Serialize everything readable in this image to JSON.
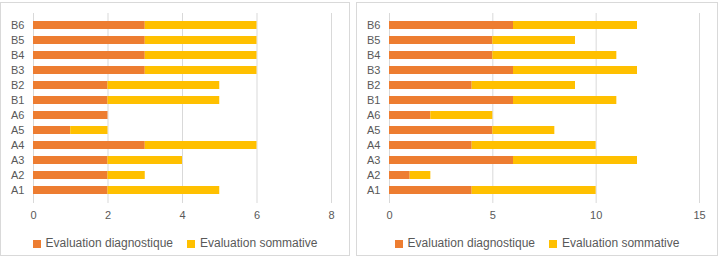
{
  "chart_data": [
    {
      "type": "bar",
      "orientation": "horizontal",
      "stacked": true,
      "grid": true,
      "legend": "bottom",
      "categories": [
        "A1",
        "A2",
        "A3",
        "A4",
        "A5",
        "A6",
        "B1",
        "B2",
        "B3",
        "B4",
        "B5",
        "B6"
      ],
      "series": [
        {
          "name": "Evaluation diagnostique",
          "color": "#ed7d31",
          "values": [
            2,
            2,
            2,
            3,
            1,
            2,
            2,
            2,
            3,
            3,
            3,
            3
          ]
        },
        {
          "name": "Evaluation sommative",
          "color": "#ffc000",
          "values": [
            3,
            1,
            2,
            3,
            1,
            0,
            3,
            3,
            3,
            3,
            3,
            3
          ]
        }
      ],
      "xlim": [
        0,
        8
      ],
      "xticks": [
        0,
        2,
        4,
        6,
        8
      ]
    },
    {
      "type": "bar",
      "orientation": "horizontal",
      "stacked": true,
      "grid": true,
      "legend": "bottom",
      "categories": [
        "A1",
        "A2",
        "A3",
        "A4",
        "A5",
        "A6",
        "B1",
        "B2",
        "B3",
        "B4",
        "B5",
        "B6"
      ],
      "series": [
        {
          "name": "Evaluation diagnostique",
          "color": "#ed7d31",
          "values": [
            4,
            1,
            6,
            4,
            5,
            2,
            6,
            4,
            6,
            5,
            5,
            6
          ]
        },
        {
          "name": "Evaluation sommative",
          "color": "#ffc000",
          "values": [
            6,
            1,
            6,
            6,
            3,
            3,
            5,
            5,
            6,
            6,
            4,
            6
          ]
        }
      ],
      "xlim": [
        0,
        15
      ],
      "xticks": [
        0,
        5,
        10,
        15
      ]
    }
  ]
}
